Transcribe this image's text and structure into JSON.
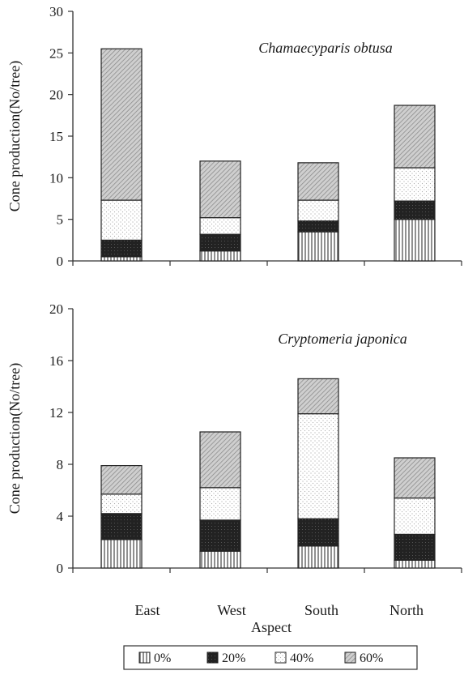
{
  "chart_data": [
    {
      "type": "bar",
      "stacked": true,
      "annotation": "Chamaecyparis obtusa",
      "ylabel": "Cone production(No/tree)",
      "xlabel": "",
      "categories": [
        "East",
        "West",
        "South",
        "North"
      ],
      "ylim": [
        0,
        30
      ],
      "yticks": [
        0,
        5,
        10,
        15,
        20,
        25,
        30
      ],
      "series": [
        {
          "name": "0%",
          "values": [
            0.5,
            1.2,
            3.5,
            5.0
          ]
        },
        {
          "name": "20%",
          "values": [
            2.0,
            2.0,
            1.3,
            2.2
          ]
        },
        {
          "name": "40%",
          "values": [
            4.8,
            2.0,
            2.5,
            4.0
          ]
        },
        {
          "name": "60%",
          "values": [
            18.2,
            6.8,
            4.5,
            7.5
          ]
        }
      ]
    },
    {
      "type": "bar",
      "stacked": true,
      "annotation": "Cryptomeria japonica",
      "ylabel": "Cone production(No/tree)",
      "xlabel": "Aspect",
      "categories": [
        "East",
        "West",
        "South",
        "North"
      ],
      "ylim": [
        0,
        20
      ],
      "yticks": [
        0,
        4,
        8,
        12,
        16,
        20
      ],
      "series": [
        {
          "name": "0%",
          "values": [
            2.2,
            1.3,
            1.7,
            0.6
          ]
        },
        {
          "name": "20%",
          "values": [
            2.0,
            2.4,
            2.1,
            2.0
          ]
        },
        {
          "name": "40%",
          "values": [
            1.5,
            2.5,
            8.1,
            2.8
          ]
        },
        {
          "name": "60%",
          "values": [
            2.2,
            4.3,
            2.7,
            3.1
          ]
        }
      ]
    }
  ],
  "legend": [
    "0%",
    "20%",
    "40%",
    "60%"
  ],
  "colors": {
    "axis": "#333333",
    "bar_outline": "#222222",
    "dark": "#222222",
    "hatch": "#666666",
    "dots": "#999999"
  }
}
